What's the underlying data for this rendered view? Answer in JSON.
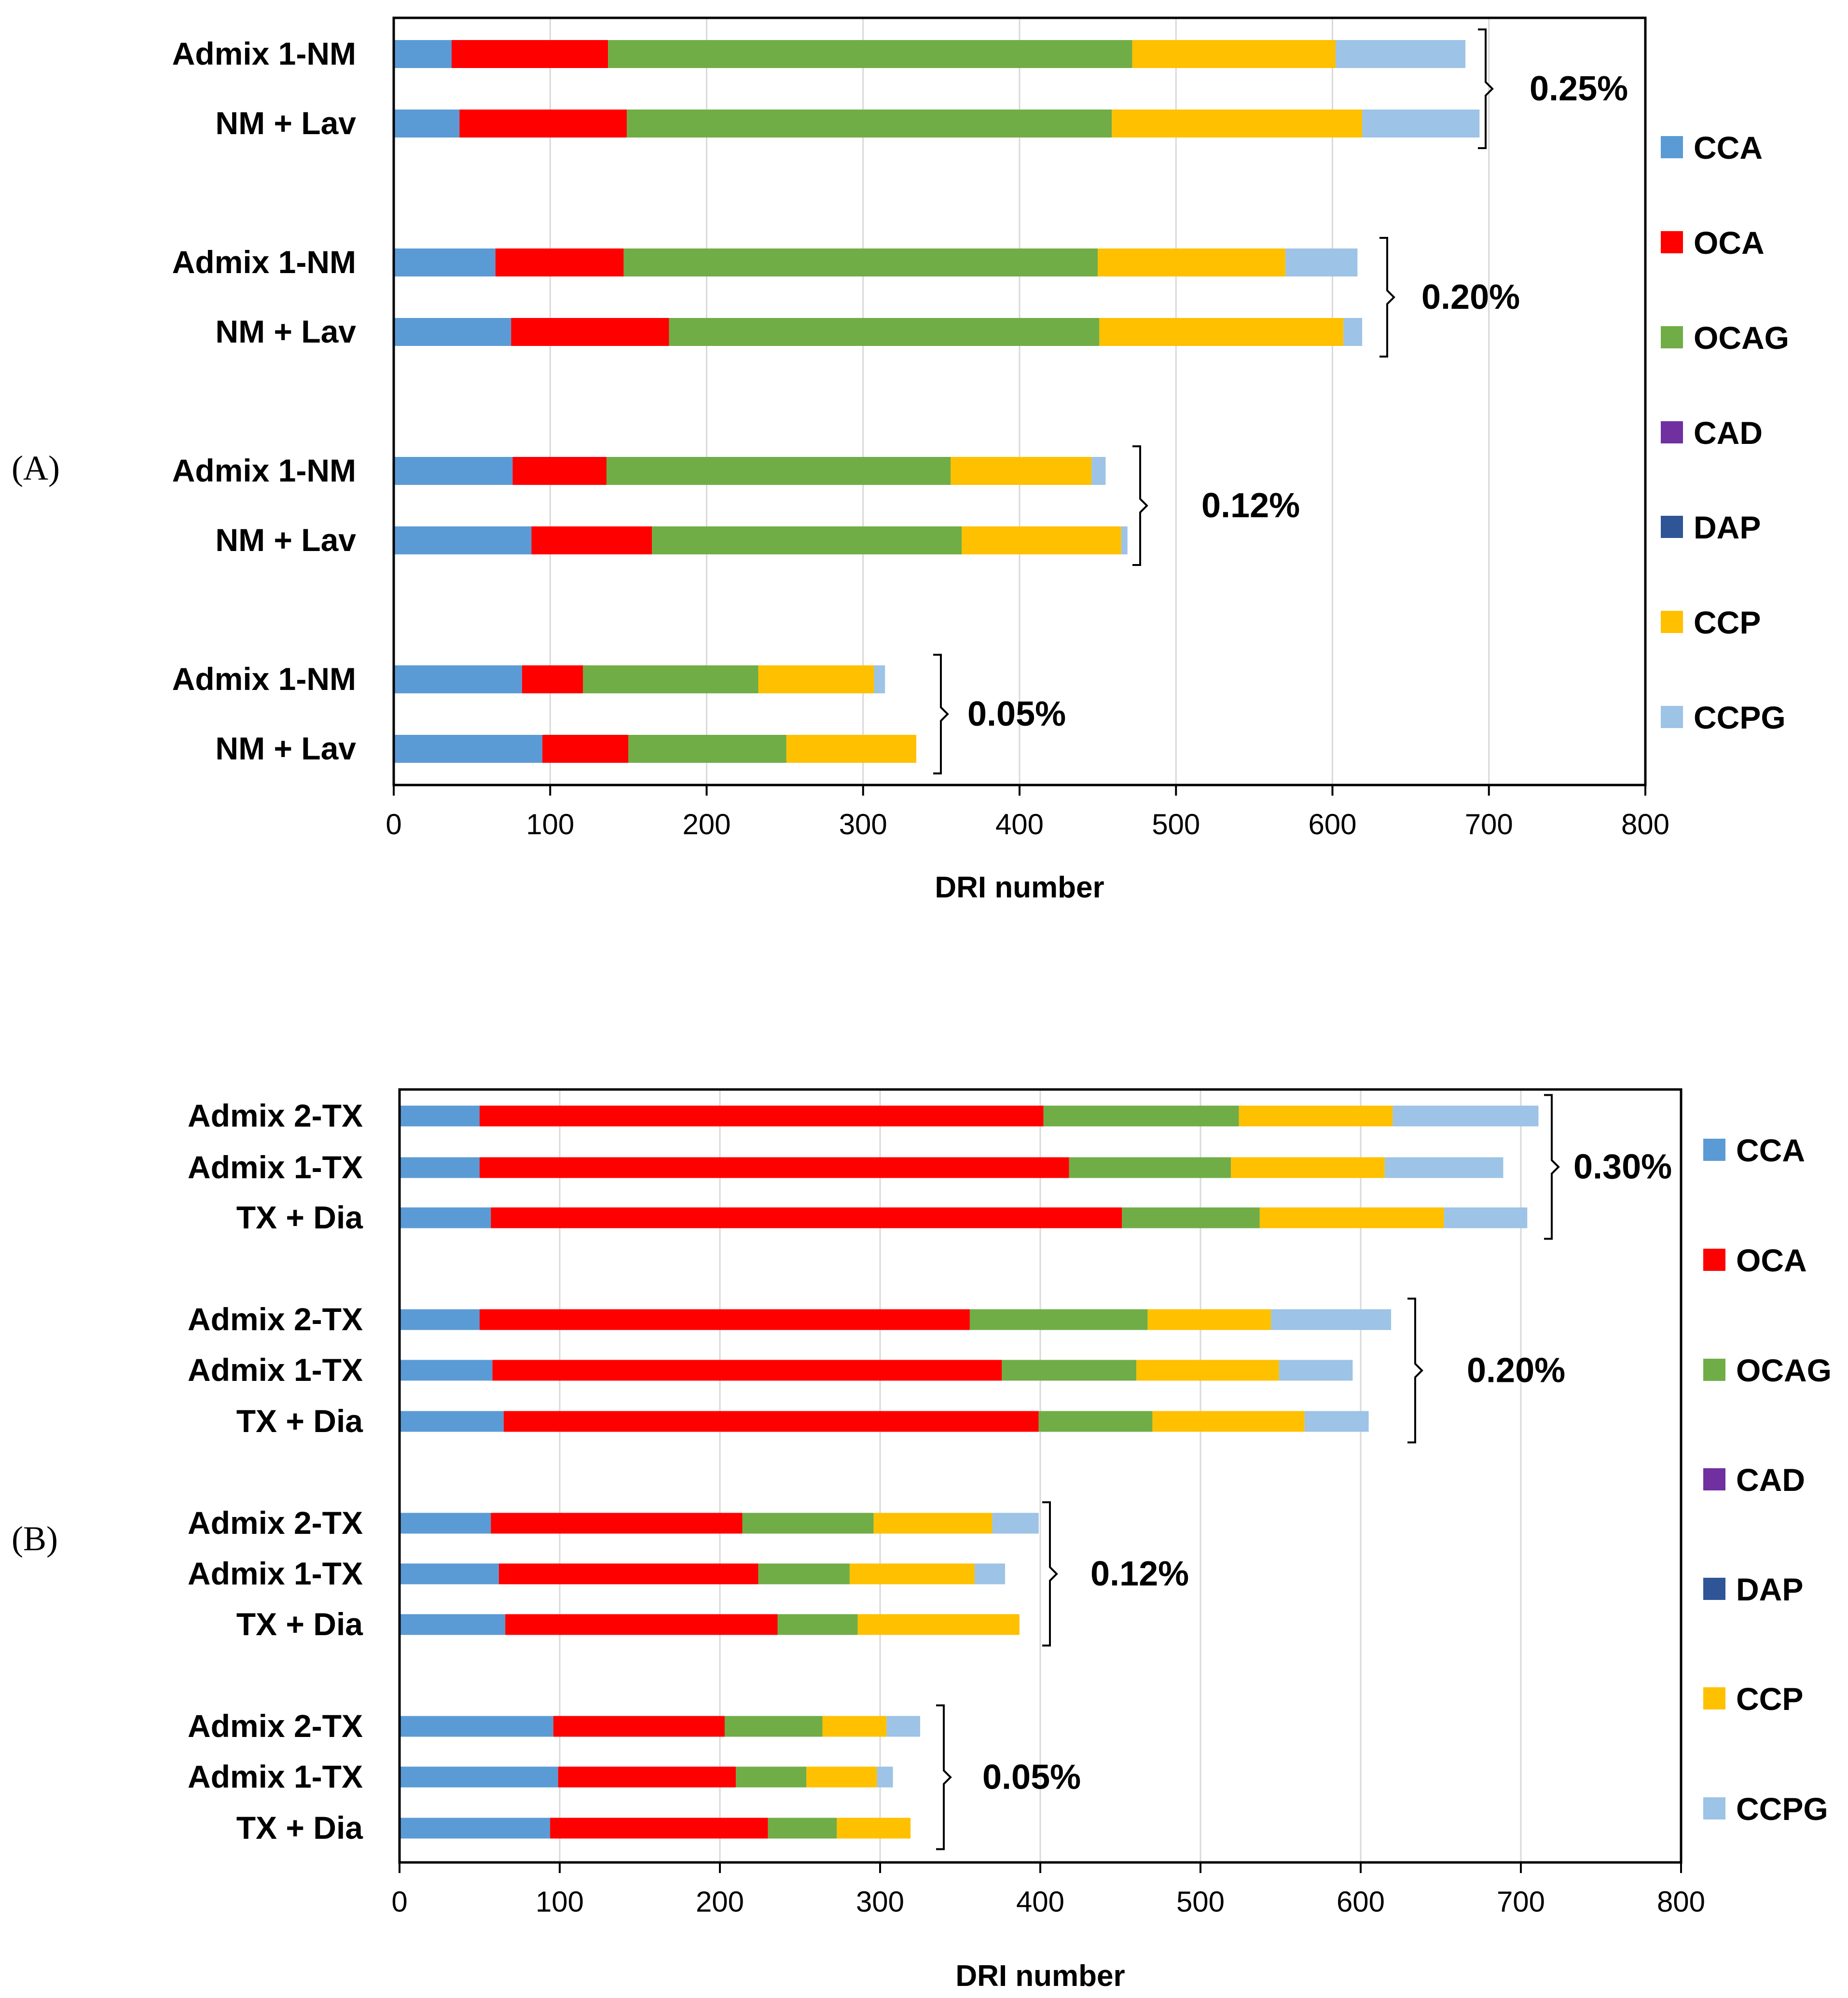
{
  "colors": {
    "CCA": "#5b9bd5",
    "OCA": "#ff0000",
    "OCAG": "#70ad47",
    "CAD": "#7030a0",
    "DAP": "#2f5597",
    "CCP": "#ffc000",
    "CCPG": "#9dc3e6"
  },
  "chart_data": [
    {
      "type": "bar",
      "orientation": "horizontal",
      "stacked": true,
      "panel_label": "(A)",
      "xlabel": "DRI number",
      "xlim": [
        0,
        800
      ],
      "xticks": [
        "0",
        "100",
        "200",
        "300",
        "400",
        "500",
        "600",
        "700",
        "800"
      ],
      "legend": [
        "CCA",
        "OCA",
        "OCAG",
        "CAD",
        "DAP",
        "CCP",
        "CCPG"
      ],
      "legend_position": "right",
      "grid": "vertical",
      "groups": [
        {
          "label": "0.25%",
          "bars": [
            {
              "category": "Admix 1-NM",
              "values": {
                "CCA": 37,
                "OCA": 100,
                "OCAG": 335,
                "CAD": 0,
                "DAP": 0,
                "CCP": 130,
                "CCPG": 83
              }
            },
            {
              "category": "NM + Lav",
              "values": {
                "CCA": 42,
                "OCA": 107,
                "OCAG": 310,
                "CAD": 0,
                "DAP": 0,
                "CCP": 160,
                "CCPG": 75
              }
            }
          ]
        },
        {
          "label": "0.20%",
          "bars": [
            {
              "category": "Admix 1-NM",
              "values": {
                "CCA": 65,
                "OCA": 82,
                "OCAG": 303,
                "CAD": 0,
                "DAP": 0,
                "CCP": 120,
                "CCPG": 46
              }
            },
            {
              "category": "NM + Lav",
              "values": {
                "CCA": 75,
                "OCA": 101,
                "OCAG": 275,
                "CAD": 0,
                "DAP": 0,
                "CCP": 156,
                "CCPG": 12
              }
            }
          ]
        },
        {
          "label": "0.12%",
          "bars": [
            {
              "category": "Admix 1-NM",
              "values": {
                "CCA": 76,
                "OCA": 60,
                "OCAG": 220,
                "CAD": 0,
                "DAP": 0,
                "CCP": 90,
                "CCPG": 9
              }
            },
            {
              "category": "NM + Lav",
              "values": {
                "CCA": 88,
                "OCA": 77,
                "OCAG": 198,
                "CAD": 0,
                "DAP": 0,
                "CCP": 102,
                "CCPG": 4
              }
            }
          ]
        },
        {
          "label": "0.05%",
          "bars": [
            {
              "category": "Admix 1-NM",
              "values": {
                "CCA": 82,
                "OCA": 39,
                "OCAG": 112,
                "CAD": 0,
                "DAP": 0,
                "CCP": 74,
                "CCPG": 7
              }
            },
            {
              "category": "NM + Lav",
              "values": {
                "CCA": 95,
                "OCA": 55,
                "OCAG": 101,
                "CAD": 0,
                "DAP": 0,
                "CCP": 83,
                "CCPG": 0
              }
            }
          ]
        }
      ]
    },
    {
      "type": "bar",
      "orientation": "horizontal",
      "stacked": true,
      "panel_label": "(B)",
      "xlabel": "DRI number",
      "xlim": [
        0,
        800
      ],
      "xticks": [
        "0",
        "100",
        "200",
        "300",
        "400",
        "500",
        "600",
        "700",
        "800"
      ],
      "legend": [
        "CCA",
        "OCA",
        "OCAG",
        "CAD",
        "DAP",
        "CCP",
        "CCPG"
      ],
      "legend_position": "right",
      "grid": "vertical",
      "groups": [
        {
          "label": "0.30%",
          "bars": [
            {
              "category": "Admix 2-TX",
              "values": {
                "CCA": 50,
                "OCA": 352,
                "OCAG": 122,
                "CAD": 0,
                "DAP": 0,
                "CCP": 96,
                "CCPG": 91
              }
            },
            {
              "category": "Admix 1-TX",
              "values": {
                "CCA": 50,
                "OCA": 368,
                "OCAG": 101,
                "CAD": 0,
                "DAP": 0,
                "CCP": 96,
                "CCPG": 74
              }
            },
            {
              "category": "TX + Dia",
              "values": {
                "CCA": 57,
                "OCA": 394,
                "OCAG": 86,
                "CAD": 0,
                "DAP": 0,
                "CCP": 115,
                "CCPG": 52
              }
            }
          ]
        },
        {
          "label": "0.20%",
          "bars": [
            {
              "category": "Admix 2-TX",
              "values": {
                "CCA": 50,
                "OCA": 306,
                "OCAG": 111,
                "CAD": 0,
                "DAP": 0,
                "CCP": 77,
                "CCPG": 75
              }
            },
            {
              "category": "Admix 1-TX",
              "values": {
                "CCA": 58,
                "OCA": 318,
                "OCAG": 84,
                "CAD": 0,
                "DAP": 0,
                "CCP": 89,
                "CCPG": 46
              }
            },
            {
              "category": "TX + Dia",
              "values": {
                "CCA": 65,
                "OCA": 334,
                "OCAG": 71,
                "CAD": 0,
                "DAP": 0,
                "CCP": 95,
                "CCPG": 40
              }
            }
          ]
        },
        {
          "label": "0.12%",
          "bars": [
            {
              "category": "Admix 2-TX",
              "values": {
                "CCA": 57,
                "OCA": 157,
                "OCAG": 82,
                "CAD": 0,
                "DAP": 0,
                "CCP": 74,
                "CCPG": 29
              }
            },
            {
              "category": "Admix 1-TX",
              "values": {
                "CCA": 62,
                "OCA": 162,
                "OCAG": 57,
                "CAD": 0,
                "DAP": 0,
                "CCP": 78,
                "CCPG": 19
              }
            },
            {
              "category": "TX + Dia",
              "values": {
                "CCA": 66,
                "OCA": 170,
                "OCAG": 50,
                "CAD": 0,
                "DAP": 0,
                "CCP": 101,
                "CCPG": 0
              }
            }
          ]
        },
        {
          "label": "0.05%",
          "bars": [
            {
              "category": "Admix 2-TX",
              "values": {
                "CCA": 96,
                "OCA": 107,
                "OCAG": 61,
                "CAD": 0,
                "DAP": 0,
                "CCP": 40,
                "CCPG": 21
              }
            },
            {
              "category": "Admix 1-TX",
              "values": {
                "CCA": 99,
                "OCA": 111,
                "OCAG": 44,
                "CAD": 0,
                "DAP": 0,
                "CCP": 44,
                "CCPG": 10
              }
            },
            {
              "category": "TX + Dia",
              "values": {
                "CCA": 94,
                "OCA": 136,
                "OCAG": 43,
                "CAD": 0,
                "DAP": 0,
                "CCP": 46,
                "CCPG": 0
              }
            }
          ]
        }
      ]
    }
  ]
}
